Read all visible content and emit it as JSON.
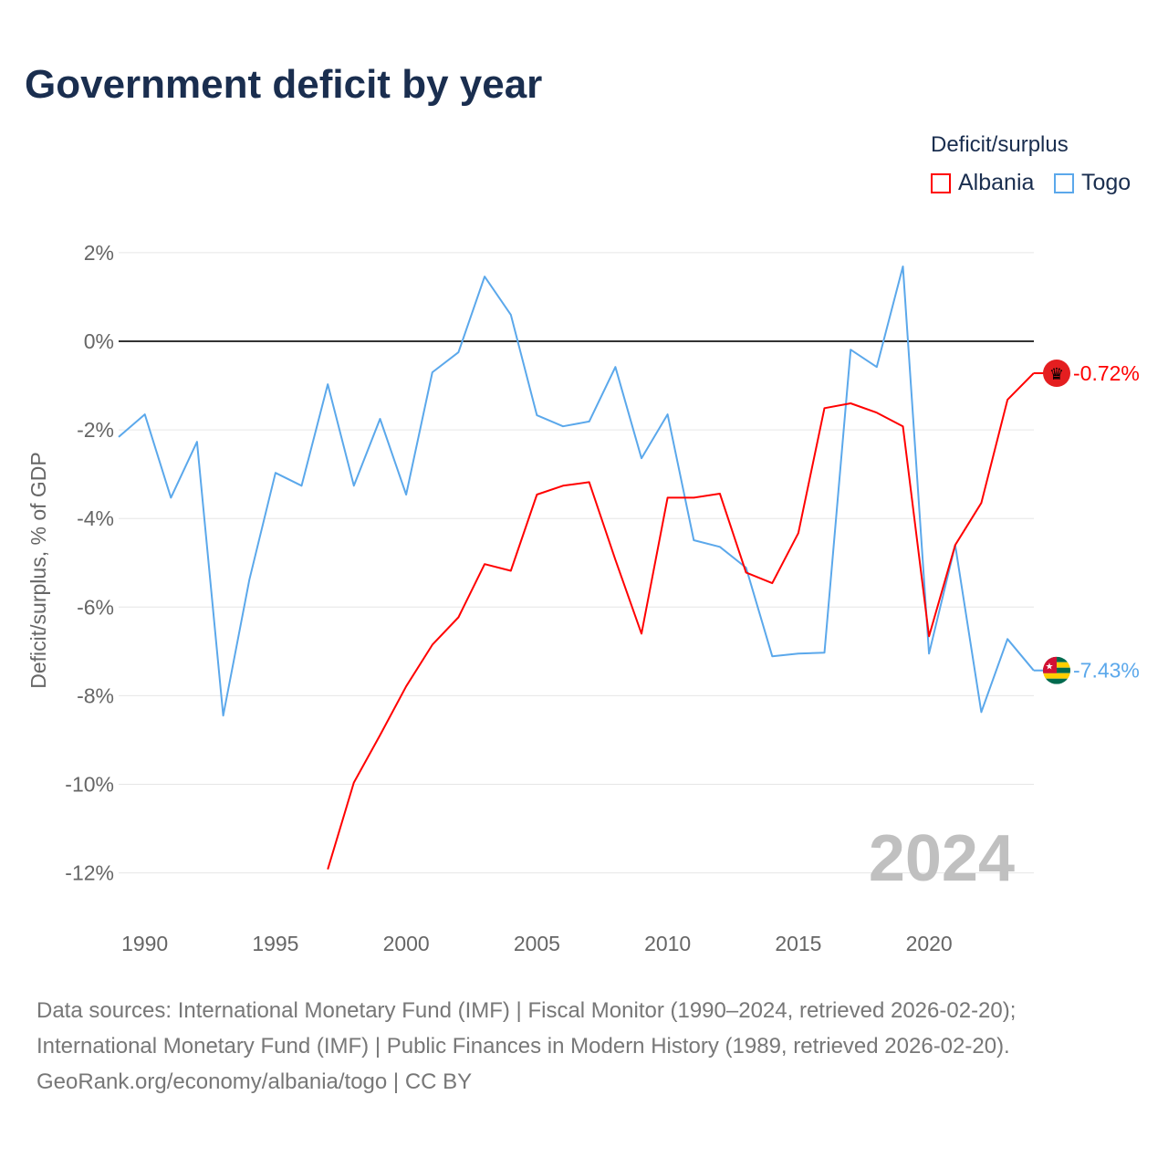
{
  "title": "Government deficit by year",
  "legend": {
    "title": "Deficit/surplus",
    "items": [
      {
        "name": "Albania",
        "color": "#ff0000"
      },
      {
        "name": "Togo",
        "color": "#5ba8eb"
      }
    ]
  },
  "chart_data": {
    "type": "line",
    "title": "Government deficit by year",
    "xlabel": "",
    "ylabel": "Deficit/surplus, % of GDP",
    "xlim": [
      1989,
      2024
    ],
    "ylim": [
      -13,
      2.5
    ],
    "x_ticks": [
      1990,
      1995,
      2000,
      2005,
      2010,
      2015,
      2020
    ],
    "y_ticks": [
      2,
      0,
      -2,
      -4,
      -6,
      -8,
      -10,
      -12
    ],
    "y_tick_labels": [
      "2%",
      "0%",
      "-2%",
      "-4%",
      "-6%",
      "-8%",
      "-10%",
      "-12%"
    ],
    "x_tick_labels": [
      "1990",
      "1995",
      "2000",
      "2005",
      "2010",
      "2015",
      "2020"
    ],
    "grid": true,
    "legend_position": "top-right",
    "year_watermark": "2024",
    "series": [
      {
        "name": "Albania",
        "color": "#ff0000",
        "end_label": "-0.72%",
        "x": [
          1997,
          1998,
          1999,
          2000,
          2001,
          2002,
          2003,
          2004,
          2005,
          2006,
          2007,
          2008,
          2009,
          2010,
          2011,
          2012,
          2013,
          2014,
          2015,
          2016,
          2017,
          2018,
          2019,
          2020,
          2021,
          2022,
          2023,
          2024
        ],
        "values": [
          -11.92,
          -9.96,
          -8.89,
          -7.79,
          -6.85,
          -6.23,
          -5.03,
          -5.18,
          -3.46,
          -3.26,
          -3.18,
          -4.93,
          -6.6,
          -3.53,
          -3.53,
          -3.44,
          -5.22,
          -5.46,
          -4.33,
          -1.51,
          -1.4,
          -1.61,
          -1.92,
          -6.66,
          -4.6,
          -3.65,
          -1.32,
          -0.72
        ]
      },
      {
        "name": "Togo",
        "color": "#5ba8eb",
        "end_label": "-7.43%",
        "x": [
          1989,
          1990,
          1991,
          1992,
          1993,
          1994,
          1995,
          1996,
          1997,
          1998,
          1999,
          2000,
          2001,
          2002,
          2003,
          2004,
          2005,
          2006,
          2007,
          2008,
          2009,
          2010,
          2011,
          2012,
          2013,
          2014,
          2015,
          2016,
          2017,
          2018,
          2019,
          2020,
          2021,
          2022,
          2023,
          2024
        ],
        "values": [
          -2.16,
          -1.65,
          -3.53,
          -2.27,
          -8.45,
          -5.38,
          -2.97,
          -3.26,
          -0.97,
          -3.26,
          -1.75,
          -3.46,
          -0.7,
          -0.25,
          1.46,
          0.6,
          -1.67,
          -1.92,
          -1.81,
          -0.58,
          -2.64,
          -1.65,
          -4.49,
          -4.64,
          -5.11,
          -7.11,
          -7.05,
          -7.03,
          -0.19,
          -0.58,
          1.69,
          -7.05,
          -4.6,
          -8.37,
          -6.72,
          -7.43
        ]
      }
    ]
  },
  "sources": {
    "line1": "Data sources: International Monetary Fund (IMF) | Fiscal Monitor (1990–2024, retrieved 2026-02-20);",
    "line2": "International Monetary Fund (IMF) | Public Finances in Modern History (1989, retrieved 2026-02-20).",
    "line3": "GeoRank.org/economy/albania/togo | CC BY"
  }
}
